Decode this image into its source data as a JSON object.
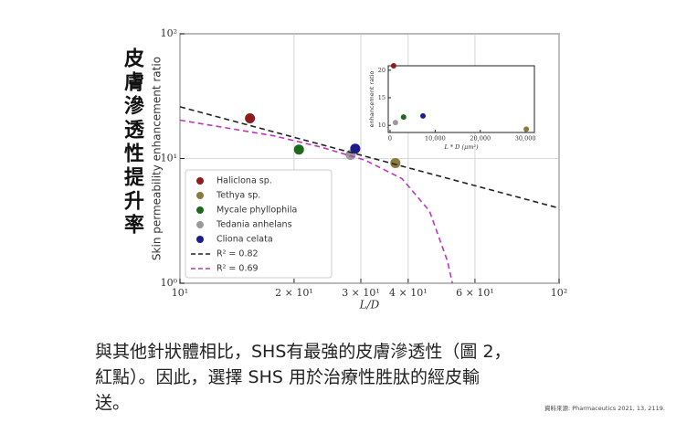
{
  "side_label": "皮膚滲透性提升率",
  "caption": [
    "與其他針狀體相比，SHS有最強的皮膚滲透性（圖 2，",
    "紅點）。因此，選擇 SHS 用於治療性胜肽的經皮輸",
    "送。"
  ],
  "source": "資料來源: Pharmaceutics 2021, 13, 2119.",
  "chart_data": [
    {
      "type": "scatter",
      "x_label": "L/D",
      "y_label": "Skin permeability enhancement ratio",
      "log_x": true,
      "log_y": true,
      "grid": true,
      "legend": "lower left",
      "xlim": [
        10,
        100
      ],
      "ylim": [
        1,
        100
      ],
      "xticks": [
        {
          "value": 10,
          "label": "10¹"
        },
        {
          "value": 20,
          "label": "2 × 10¹"
        },
        {
          "value": 30,
          "label": "3 × 10¹"
        },
        {
          "value": 40,
          "label": "4 × 10¹"
        },
        {
          "value": 60,
          "label": "6 × 10¹"
        },
        {
          "value": 100,
          "label": "10²"
        }
      ],
      "yticks": [
        {
          "value": 1,
          "label": "10⁰"
        },
        {
          "value": 10,
          "label": "10¹"
        },
        {
          "value": 100,
          "label": "10²"
        }
      ],
      "series": [
        {
          "name": "Haliclona sp.",
          "color": "#8e1c1c",
          "x": [
            15.3
          ],
          "values": [
            21
          ]
        },
        {
          "name": "Tethya sp.",
          "color": "#8a7a3c",
          "x": [
            37
          ],
          "values": [
            9.2
          ]
        },
        {
          "name": "Mycale phyllophila",
          "color": "#1d6a1d",
          "x": [
            20.6
          ],
          "values": [
            11.8
          ]
        },
        {
          "name": "Tedania anhelans",
          "color": "#9a9a9a",
          "x": [
            28.2
          ],
          "values": [
            10.7
          ]
        },
        {
          "name": "Cliona celata",
          "color": "#1c1c8c",
          "x": [
            29
          ],
          "values": [
            12
          ]
        },
        {
          "name": "R² = 0.82",
          "color": "#222222",
          "style": "dashed",
          "x": [
            10,
            100
          ],
          "values": [
            26,
            4
          ]
        },
        {
          "name": "R² = 0.69",
          "color": "#c034c0",
          "style": "dashed",
          "x": [
            10,
            17.7,
            23.4,
            30.8,
            38.5,
            45.5,
            50.8,
            52.3
          ],
          "values": [
            20.3,
            15.2,
            12.4,
            9.7,
            6.9,
            3.8,
            1.5,
            1
          ]
        }
      ]
    },
    {
      "type": "scatter",
      "x_label": "L * D (μm²)",
      "y_label": "enhancement ratio",
      "xlim": [
        -400,
        32000
      ],
      "ylim": [
        8.7,
        20.8
      ],
      "xticks": [
        0,
        {
          "value": 10000,
          "label": "10,000"
        },
        {
          "value": 20000,
          "label": "20,000"
        },
        {
          "value": 30000,
          "label": "30,000"
        }
      ],
      "yticks": [
        10,
        15,
        20
      ],
      "series": [
        {
          "color": "#8e1c1c",
          "x": [
            800
          ],
          "values": [
            20.8
          ]
        },
        {
          "color": "#9a9a9a",
          "x": [
            1200
          ],
          "values": [
            10.5
          ]
        },
        {
          "color": "#1d6a1d",
          "x": [
            3000
          ],
          "values": [
            11.5
          ]
        },
        {
          "color": "#1c1c8c",
          "x": [
            7300
          ],
          "values": [
            11.7
          ]
        },
        {
          "color": "#8a7a3c",
          "x": [
            30200
          ],
          "values": [
            9.3
          ]
        }
      ]
    }
  ]
}
